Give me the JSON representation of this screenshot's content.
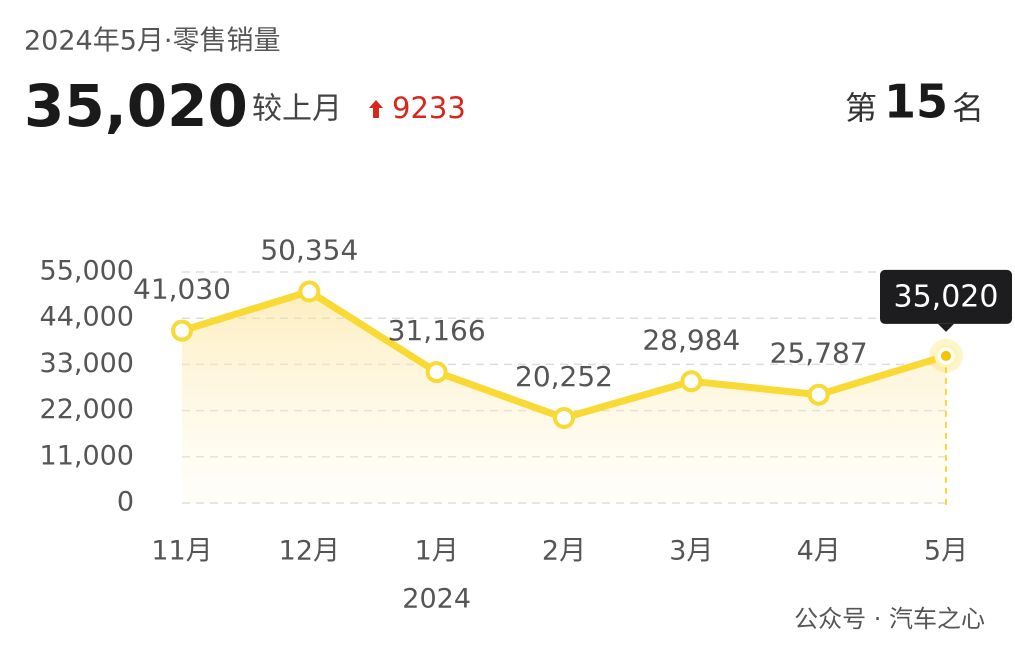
{
  "header": {
    "title": "2024年5月·零售销量",
    "compare_label": "较上月",
    "change": "9233",
    "rank_prefix": "第",
    "rank": "15",
    "rank_suffix": "名"
  },
  "chart_data": {
    "type": "line",
    "categories": [
      "11月",
      "12月",
      "1月",
      "2月",
      "3月",
      "4月",
      "5月"
    ],
    "year_labels": [
      null,
      null,
      "2024",
      null,
      null,
      null,
      null
    ],
    "values": [
      41030,
      50354,
      31166,
      20252,
      28984,
      25787,
      35020
    ],
    "value_labels": [
      "41,030",
      "50,354",
      "31,166",
      "20,252",
      "28,984",
      "25,787",
      "35,020"
    ],
    "color": "#f9d934",
    "highlight_index": 6,
    "ylim": [
      0,
      55000
    ],
    "yticks": [
      0,
      {
        "value": 11000,
        "label": "11,000"
      },
      {
        "value": 22000,
        "label": "22,000"
      },
      {
        "value": 33000,
        "label": "33,000"
      },
      {
        "value": 44000,
        "label": "44,000"
      },
      {
        "value": 55000,
        "label": "55,000"
      }
    ],
    "grid": true
  },
  "watermark": "公众号 · 汽车之心"
}
